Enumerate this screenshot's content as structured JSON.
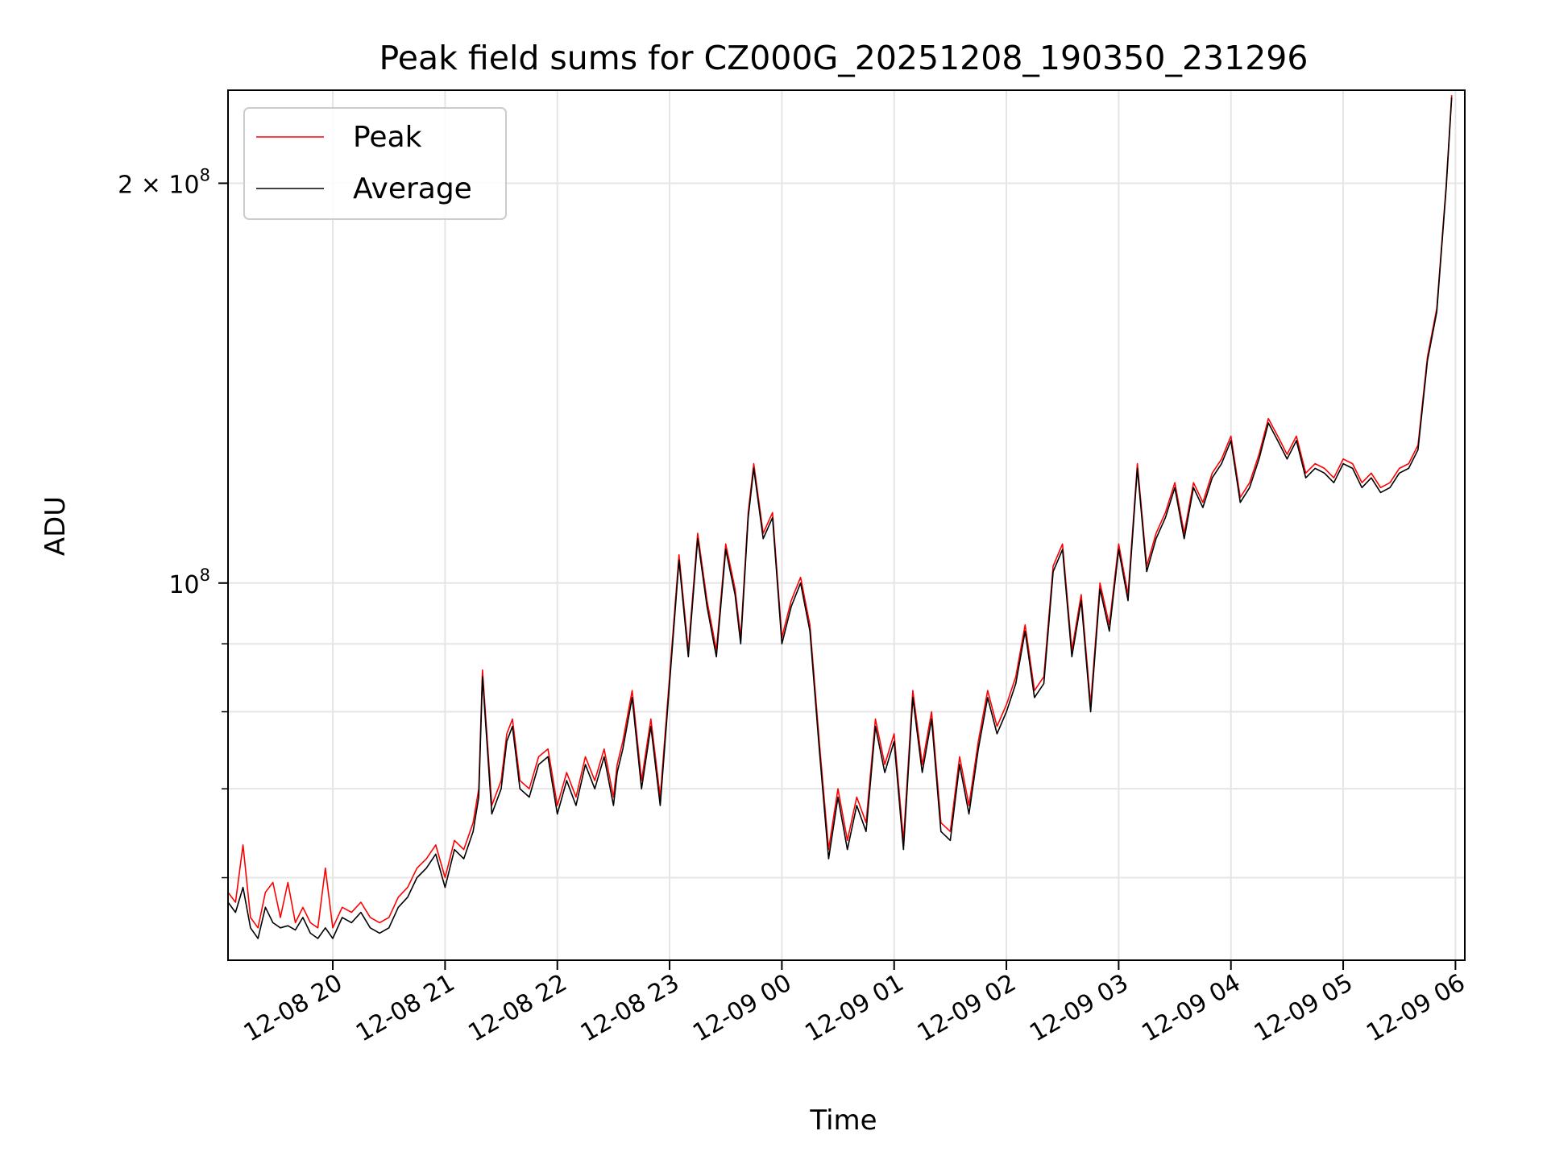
{
  "chart_data": {
    "type": "line",
    "title": "Peak field sums for CZ000G_20251208_190350_231296",
    "xlabel": "Time",
    "ylabel": "ADU",
    "yscale": "log",
    "ylim": [
      52000000,
      235000000
    ],
    "xlim": [
      "12-08 19:04",
      "12-09 06:05"
    ],
    "grid": true,
    "legend": {
      "placement": "top-left",
      "entries": [
        "Peak",
        "Average"
      ]
    },
    "y_ticks": [
      {
        "value": 100000000,
        "label": "10^8"
      },
      {
        "value": 200000000,
        "label": "2 × 10^8"
      }
    ],
    "y_minor_ticks": [
      60000000,
      70000000,
      80000000,
      90000000
    ],
    "x_ticks": [
      "12-08 20",
      "12-08 21",
      "12-08 22",
      "12-08 23",
      "12-09 00",
      "12-09 01",
      "12-09 02",
      "12-09 03",
      "12-09 04",
      "12-09 05",
      "12-09 06"
    ],
    "x_tick_times": [
      "12-08 20:00",
      "12-08 21:00",
      "12-08 22:00",
      "12-08 23:00",
      "12-09 00:00",
      "12-09 01:00",
      "12-09 02:00",
      "12-09 03:00",
      "12-09 04:00",
      "12-09 05:00",
      "12-09 06:00"
    ],
    "series": [
      {
        "name": "Average",
        "color": "#000000",
        "x": [
          "12-08 19:04",
          "12-08 19:08",
          "12-08 19:12",
          "12-08 19:16",
          "12-08 19:20",
          "12-08 19:24",
          "12-08 19:28",
          "12-08 19:32",
          "12-08 19:36",
          "12-08 19:40",
          "12-08 19:44",
          "12-08 19:48",
          "12-08 19:52",
          "12-08 19:56",
          "12-08 20:00",
          "12-08 20:05",
          "12-08 20:10",
          "12-08 20:15",
          "12-08 20:20",
          "12-08 20:25",
          "12-08 20:30",
          "12-08 20:35",
          "12-08 20:40",
          "12-08 20:45",
          "12-08 20:50",
          "12-08 20:55",
          "12-08 21:00",
          "12-08 21:05",
          "12-08 21:10",
          "12-08 21:15",
          "12-08 21:18",
          "12-08 21:20",
          "12-08 21:25",
          "12-08 21:30",
          "12-08 21:33",
          "12-08 21:36",
          "12-08 21:40",
          "12-08 21:45",
          "12-08 21:50",
          "12-08 21:55",
          "12-08 22:00",
          "12-08 22:05",
          "12-08 22:10",
          "12-08 22:15",
          "12-08 22:20",
          "12-08 22:25",
          "12-08 22:30",
          "12-08 22:32",
          "12-08 22:35",
          "12-08 22:40",
          "12-08 22:45",
          "12-08 22:50",
          "12-08 22:55",
          "12-08 23:00",
          "12-08 23:05",
          "12-08 23:10",
          "12-08 23:15",
          "12-08 23:20",
          "12-08 23:25",
          "12-08 23:30",
          "12-08 23:35",
          "12-08 23:38",
          "12-08 23:42",
          "12-08 23:45",
          "12-08 23:50",
          "12-08 23:55",
          "12-09 00:00",
          "12-09 00:05",
          "12-09 00:10",
          "12-09 00:15",
          "12-09 00:20",
          "12-09 00:25",
          "12-09 00:30",
          "12-09 00:35",
          "12-09 00:40",
          "12-09 00:45",
          "12-09 00:50",
          "12-09 00:55",
          "12-09 01:00",
          "12-09 01:05",
          "12-09 01:10",
          "12-09 01:15",
          "12-09 01:20",
          "12-09 01:25",
          "12-09 01:30",
          "12-09 01:35",
          "12-09 01:40",
          "12-09 01:45",
          "12-09 01:50",
          "12-09 01:55",
          "12-09 02:00",
          "12-09 02:05",
          "12-09 02:10",
          "12-09 02:15",
          "12-09 02:20",
          "12-09 02:25",
          "12-09 02:30",
          "12-09 02:35",
          "12-09 02:40",
          "12-09 02:45",
          "12-09 02:50",
          "12-09 02:55",
          "12-09 03:00",
          "12-09 03:05",
          "12-09 03:10",
          "12-09 03:15",
          "12-09 03:20",
          "12-09 03:25",
          "12-09 03:30",
          "12-09 03:35",
          "12-09 03:40",
          "12-09 03:45",
          "12-09 03:50",
          "12-09 03:55",
          "12-09 04:00",
          "12-09 04:05",
          "12-09 04:10",
          "12-09 04:15",
          "12-09 04:20",
          "12-09 04:25",
          "12-09 04:30",
          "12-09 04:35",
          "12-09 04:40",
          "12-09 04:45",
          "12-09 04:50",
          "12-09 04:55",
          "12-09 05:00",
          "12-09 05:05",
          "12-09 05:10",
          "12-09 05:15",
          "12-09 05:20",
          "12-09 05:25",
          "12-09 05:30",
          "12-09 05:35",
          "12-09 05:40",
          "12-09 05:45",
          "12-09 05:50",
          "12-09 05:55",
          "12-09 05:58"
        ],
        "y": [
          57500000,
          56500000,
          59000000,
          55000000,
          54000000,
          57000000,
          55500000,
          55000000,
          55200000,
          54800000,
          56000000,
          54500000,
          54000000,
          55000000,
          54000000,
          56000000,
          55500000,
          56500000,
          55000000,
          54500000,
          55000000,
          57000000,
          58000000,
          60000000,
          61000000,
          62500000,
          59000000,
          63000000,
          62000000,
          65000000,
          69000000,
          85000000,
          67000000,
          70000000,
          76000000,
          78000000,
          70000000,
          69000000,
          73000000,
          74000000,
          67000000,
          71000000,
          68000000,
          73000000,
          70000000,
          74000000,
          68000000,
          72000000,
          75000000,
          82000000,
          70000000,
          78000000,
          68000000,
          84000000,
          104000000,
          88000000,
          108000000,
          96000000,
          88000000,
          106000000,
          98000000,
          90000000,
          112000000,
          122000000,
          108000000,
          112000000,
          90000000,
          96000000,
          100000000,
          92000000,
          75000000,
          62000000,
          69000000,
          63000000,
          68000000,
          65000000,
          78000000,
          72000000,
          76000000,
          63000000,
          82000000,
          72000000,
          79000000,
          65000000,
          64000000,
          73000000,
          67000000,
          75000000,
          82000000,
          77000000,
          80000000,
          84000000,
          92000000,
          82000000,
          84000000,
          102000000,
          106000000,
          88000000,
          97000000,
          80000000,
          99000000,
          92000000,
          106000000,
          97000000,
          122000000,
          102000000,
          108000000,
          112000000,
          118000000,
          108000000,
          118000000,
          114000000,
          120000000,
          123000000,
          128000000,
          115000000,
          118000000,
          124000000,
          132000000,
          128000000,
          124000000,
          128000000,
          120000000,
          122000000,
          121000000,
          119000000,
          123000000,
          122000000,
          118000000,
          120000000,
          117000000,
          118000000,
          121000000,
          122000000,
          126000000,
          147000000,
          160000000,
          198000000,
          232000000
        ]
      },
      {
        "name": "Peak",
        "color": "#ff0000",
        "x": [
          "12-08 19:04",
          "12-08 19:08",
          "12-08 19:12",
          "12-08 19:16",
          "12-08 19:20",
          "12-08 19:24",
          "12-08 19:28",
          "12-08 19:32",
          "12-08 19:36",
          "12-08 19:40",
          "12-08 19:44",
          "12-08 19:48",
          "12-08 19:52",
          "12-08 19:56",
          "12-08 20:00",
          "12-08 20:05",
          "12-08 20:10",
          "12-08 20:15",
          "12-08 20:20",
          "12-08 20:25",
          "12-08 20:30",
          "12-08 20:35",
          "12-08 20:40",
          "12-08 20:45",
          "12-08 20:50",
          "12-08 20:55",
          "12-08 21:00",
          "12-08 21:05",
          "12-08 21:10",
          "12-08 21:15",
          "12-08 21:18",
          "12-08 21:20",
          "12-08 21:25",
          "12-08 21:30",
          "12-08 21:33",
          "12-08 21:36",
          "12-08 21:40",
          "12-08 21:45",
          "12-08 21:50",
          "12-08 21:55",
          "12-08 22:00",
          "12-08 22:05",
          "12-08 22:10",
          "12-08 22:15",
          "12-08 22:20",
          "12-08 22:25",
          "12-08 22:30",
          "12-08 22:32",
          "12-08 22:35",
          "12-08 22:40",
          "12-08 22:45",
          "12-08 22:50",
          "12-08 22:55",
          "12-08 23:00",
          "12-08 23:05",
          "12-08 23:10",
          "12-08 23:15",
          "12-08 23:20",
          "12-08 23:25",
          "12-08 23:30",
          "12-08 23:35",
          "12-08 23:38",
          "12-08 23:42",
          "12-08 23:45",
          "12-08 23:50",
          "12-08 23:55",
          "12-09 00:00",
          "12-09 00:05",
          "12-09 00:10",
          "12-09 00:15",
          "12-09 00:20",
          "12-09 00:25",
          "12-09 00:30",
          "12-09 00:35",
          "12-09 00:40",
          "12-09 00:45",
          "12-09 00:50",
          "12-09 00:55",
          "12-09 01:00",
          "12-09 01:05",
          "12-09 01:10",
          "12-09 01:15",
          "12-09 01:20",
          "12-09 01:25",
          "12-09 01:30",
          "12-09 01:35",
          "12-09 01:40",
          "12-09 01:45",
          "12-09 01:50",
          "12-09 01:55",
          "12-09 02:00",
          "12-09 02:05",
          "12-09 02:10",
          "12-09 02:15",
          "12-09 02:20",
          "12-09 02:25",
          "12-09 02:30",
          "12-09 02:35",
          "12-09 02:40",
          "12-09 02:45",
          "12-09 02:50",
          "12-09 02:55",
          "12-09 03:00",
          "12-09 03:05",
          "12-09 03:10",
          "12-09 03:15",
          "12-09 03:20",
          "12-09 03:25",
          "12-09 03:30",
          "12-09 03:35",
          "12-09 03:40",
          "12-09 03:45",
          "12-09 03:50",
          "12-09 03:55",
          "12-09 04:00",
          "12-09 04:05",
          "12-09 04:10",
          "12-09 04:15",
          "12-09 04:20",
          "12-09 04:25",
          "12-09 04:30",
          "12-09 04:35",
          "12-09 04:40",
          "12-09 04:45",
          "12-09 04:50",
          "12-09 04:55",
          "12-09 05:00",
          "12-09 05:05",
          "12-09 05:10",
          "12-09 05:15",
          "12-09 05:20",
          "12-09 05:25",
          "12-09 05:30",
          "12-09 05:35",
          "12-09 05:40",
          "12-09 05:45",
          "12-09 05:50",
          "12-09 05:55",
          "12-09 05:58"
        ],
        "y": [
          58500000,
          57500000,
          63500000,
          56000000,
          55000000,
          58500000,
          59500000,
          56000000,
          59500000,
          55500000,
          57000000,
          55500000,
          55000000,
          61000000,
          55000000,
          57000000,
          56500000,
          57500000,
          56000000,
          55500000,
          56000000,
          58000000,
          59000000,
          61000000,
          62000000,
          63500000,
          60000000,
          64000000,
          63000000,
          66000000,
          70000000,
          86000000,
          68000000,
          71000000,
          77000000,
          79000000,
          71000000,
          70000000,
          74000000,
          75000000,
          68000000,
          72000000,
          69000000,
          74000000,
          71000000,
          75000000,
          69000000,
          73000000,
          76000000,
          83000000,
          71000000,
          79000000,
          69000000,
          85000000,
          105000000,
          89000000,
          109000000,
          97000000,
          89000000,
          107000000,
          99000000,
          91000000,
          113000000,
          123000000,
          109000000,
          113000000,
          91000000,
          97000000,
          101000000,
          93000000,
          76000000,
          63000000,
          70000000,
          64000000,
          69000000,
          66000000,
          79000000,
          73000000,
          77000000,
          64000000,
          83000000,
          73000000,
          80000000,
          66000000,
          65000000,
          74000000,
          68000000,
          76000000,
          83000000,
          78000000,
          81000000,
          85000000,
          93000000,
          83000000,
          85000000,
          103000000,
          107000000,
          89000000,
          98000000,
          81000000,
          100000000,
          93000000,
          107000000,
          98000000,
          123000000,
          103000000,
          109000000,
          113000000,
          119000000,
          109000000,
          119000000,
          115000000,
          121000000,
          124000000,
          129000000,
          116000000,
          119000000,
          125000000,
          133000000,
          129000000,
          125000000,
          129000000,
          121000000,
          123000000,
          122000000,
          120000000,
          124000000,
          123000000,
          119000000,
          121000000,
          118000000,
          119000000,
          122000000,
          123000000,
          127000000,
          148000000,
          161000000,
          199000000,
          233000000
        ]
      }
    ]
  }
}
